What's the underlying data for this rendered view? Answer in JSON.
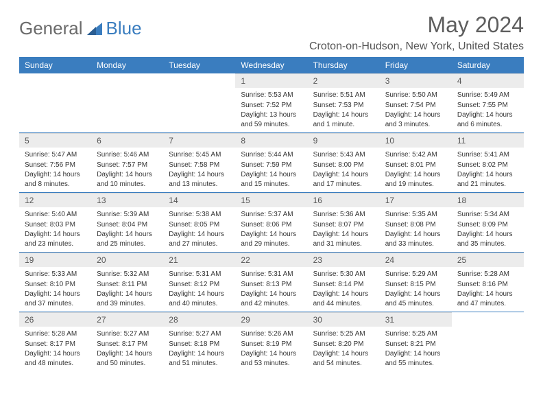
{
  "logo": {
    "general": "General",
    "blue": "Blue"
  },
  "title": "May 2024",
  "location": "Croton-on-Hudson, New York, United States",
  "colors": {
    "header_bg": "#3a7dbf",
    "header_text": "#ffffff",
    "daynum_bg": "#ececec",
    "border": "#3a7dbf",
    "logo_general": "#6a6a6a",
    "logo_blue": "#3a7dbf",
    "title_color": "#5e5e5e"
  },
  "weekdays": [
    "Sunday",
    "Monday",
    "Tuesday",
    "Wednesday",
    "Thursday",
    "Friday",
    "Saturday"
  ],
  "weeks": [
    [
      null,
      null,
      null,
      {
        "n": "1",
        "sr": "5:53 AM",
        "ss": "7:52 PM",
        "dl": "13 hours and 59 minutes."
      },
      {
        "n": "2",
        "sr": "5:51 AM",
        "ss": "7:53 PM",
        "dl": "14 hours and 1 minute."
      },
      {
        "n": "3",
        "sr": "5:50 AM",
        "ss": "7:54 PM",
        "dl": "14 hours and 3 minutes."
      },
      {
        "n": "4",
        "sr": "5:49 AM",
        "ss": "7:55 PM",
        "dl": "14 hours and 6 minutes."
      }
    ],
    [
      {
        "n": "5",
        "sr": "5:47 AM",
        "ss": "7:56 PM",
        "dl": "14 hours and 8 minutes."
      },
      {
        "n": "6",
        "sr": "5:46 AM",
        "ss": "7:57 PM",
        "dl": "14 hours and 10 minutes."
      },
      {
        "n": "7",
        "sr": "5:45 AM",
        "ss": "7:58 PM",
        "dl": "14 hours and 13 minutes."
      },
      {
        "n": "8",
        "sr": "5:44 AM",
        "ss": "7:59 PM",
        "dl": "14 hours and 15 minutes."
      },
      {
        "n": "9",
        "sr": "5:43 AM",
        "ss": "8:00 PM",
        "dl": "14 hours and 17 minutes."
      },
      {
        "n": "10",
        "sr": "5:42 AM",
        "ss": "8:01 PM",
        "dl": "14 hours and 19 minutes."
      },
      {
        "n": "11",
        "sr": "5:41 AM",
        "ss": "8:02 PM",
        "dl": "14 hours and 21 minutes."
      }
    ],
    [
      {
        "n": "12",
        "sr": "5:40 AM",
        "ss": "8:03 PM",
        "dl": "14 hours and 23 minutes."
      },
      {
        "n": "13",
        "sr": "5:39 AM",
        "ss": "8:04 PM",
        "dl": "14 hours and 25 minutes."
      },
      {
        "n": "14",
        "sr": "5:38 AM",
        "ss": "8:05 PM",
        "dl": "14 hours and 27 minutes."
      },
      {
        "n": "15",
        "sr": "5:37 AM",
        "ss": "8:06 PM",
        "dl": "14 hours and 29 minutes."
      },
      {
        "n": "16",
        "sr": "5:36 AM",
        "ss": "8:07 PM",
        "dl": "14 hours and 31 minutes."
      },
      {
        "n": "17",
        "sr": "5:35 AM",
        "ss": "8:08 PM",
        "dl": "14 hours and 33 minutes."
      },
      {
        "n": "18",
        "sr": "5:34 AM",
        "ss": "8:09 PM",
        "dl": "14 hours and 35 minutes."
      }
    ],
    [
      {
        "n": "19",
        "sr": "5:33 AM",
        "ss": "8:10 PM",
        "dl": "14 hours and 37 minutes."
      },
      {
        "n": "20",
        "sr": "5:32 AM",
        "ss": "8:11 PM",
        "dl": "14 hours and 39 minutes."
      },
      {
        "n": "21",
        "sr": "5:31 AM",
        "ss": "8:12 PM",
        "dl": "14 hours and 40 minutes."
      },
      {
        "n": "22",
        "sr": "5:31 AM",
        "ss": "8:13 PM",
        "dl": "14 hours and 42 minutes."
      },
      {
        "n": "23",
        "sr": "5:30 AM",
        "ss": "8:14 PM",
        "dl": "14 hours and 44 minutes."
      },
      {
        "n": "24",
        "sr": "5:29 AM",
        "ss": "8:15 PM",
        "dl": "14 hours and 45 minutes."
      },
      {
        "n": "25",
        "sr": "5:28 AM",
        "ss": "8:16 PM",
        "dl": "14 hours and 47 minutes."
      }
    ],
    [
      {
        "n": "26",
        "sr": "5:28 AM",
        "ss": "8:17 PM",
        "dl": "14 hours and 48 minutes."
      },
      {
        "n": "27",
        "sr": "5:27 AM",
        "ss": "8:17 PM",
        "dl": "14 hours and 50 minutes."
      },
      {
        "n": "28",
        "sr": "5:27 AM",
        "ss": "8:18 PM",
        "dl": "14 hours and 51 minutes."
      },
      {
        "n": "29",
        "sr": "5:26 AM",
        "ss": "8:19 PM",
        "dl": "14 hours and 53 minutes."
      },
      {
        "n": "30",
        "sr": "5:25 AM",
        "ss": "8:20 PM",
        "dl": "14 hours and 54 minutes."
      },
      {
        "n": "31",
        "sr": "5:25 AM",
        "ss": "8:21 PM",
        "dl": "14 hours and 55 minutes."
      },
      null
    ]
  ],
  "labels": {
    "sunrise": "Sunrise:",
    "sunset": "Sunset:",
    "daylight": "Daylight:"
  }
}
